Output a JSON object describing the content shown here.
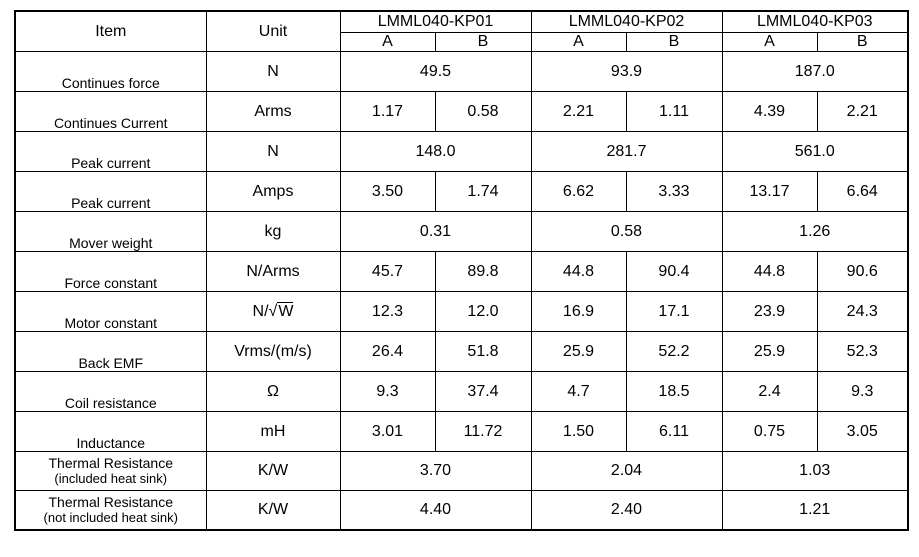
{
  "table": {
    "header": {
      "item": "Item",
      "unit": "Unit",
      "models": [
        "LMML040-KP01",
        "LMML040-KP02",
        "LMML040-KP03"
      ],
      "variants": [
        "A",
        "B",
        "A",
        "B",
        "A",
        "B"
      ]
    },
    "rows": [
      {
        "item": "Continues force",
        "unit": "N",
        "merged": true,
        "values": [
          "49.5",
          "93.9",
          "187.0"
        ]
      },
      {
        "item": "Continues Current",
        "unit": "Arms",
        "merged": false,
        "values": [
          "1.17",
          "0.58",
          "2.21",
          "1.11",
          "4.39",
          "2.21"
        ]
      },
      {
        "item": "Peak current",
        "unit": "N",
        "merged": true,
        "values": [
          "148.0",
          "281.7",
          "561.0"
        ]
      },
      {
        "item": "Peak current",
        "unit": "Amps",
        "merged": false,
        "values": [
          "3.50",
          "1.74",
          "6.62",
          "3.33",
          "13.17",
          "6.64"
        ]
      },
      {
        "item": "Mover weight",
        "unit": "kg",
        "merged": true,
        "values": [
          "0.31",
          "0.58",
          "1.26"
        ]
      },
      {
        "item": "Force constant",
        "unit": "N/Arms",
        "merged": false,
        "values": [
          "45.7",
          "89.8",
          "44.8",
          "90.4",
          "44.8",
          "90.6"
        ]
      },
      {
        "item": "Motor constant",
        "unit_prefix": "N/",
        "unit_root": "W",
        "merged": false,
        "values": [
          "12.3",
          "12.0",
          "16.9",
          "17.1",
          "23.9",
          "24.3"
        ]
      },
      {
        "item": "Back EMF",
        "unit": "Vrms/(m/s)",
        "merged": false,
        "values": [
          "26.4",
          "51.8",
          "25.9",
          "52.2",
          "25.9",
          "52.3"
        ]
      },
      {
        "item": "Coil resistance",
        "unit": "Ω",
        "merged": false,
        "values": [
          "9.3",
          "37.4",
          "4.7",
          "18.5",
          "2.4",
          "9.3"
        ]
      },
      {
        "item": "Inductance",
        "unit": "mH",
        "merged": false,
        "values": [
          "3.01",
          "11.72",
          "1.50",
          "6.11",
          "0.75",
          "3.05"
        ]
      }
    ],
    "thermal_rows": [
      {
        "item": "Thermal Resistance",
        "sub": "(included heat sink)",
        "unit": "K/W",
        "values": [
          "3.70",
          "2.04",
          "1.03"
        ]
      },
      {
        "item": "Thermal Resistance",
        "sub": "(not included heat sink)",
        "unit": "K/W",
        "values": [
          "4.40",
          "2.40",
          "1.21"
        ]
      }
    ]
  }
}
